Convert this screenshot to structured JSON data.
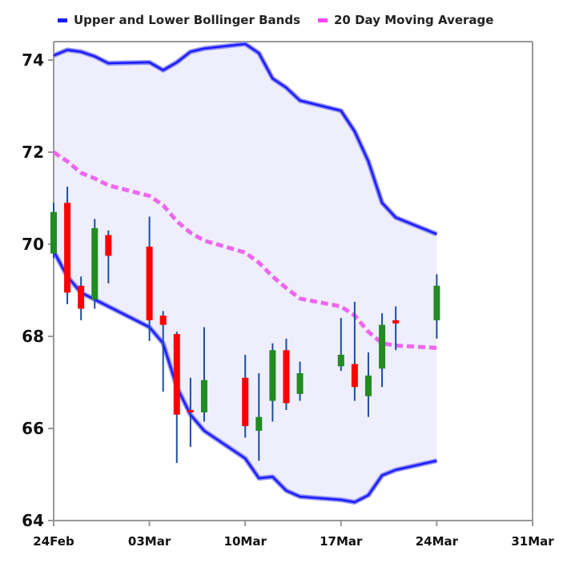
{
  "chart_data": {
    "type": "candlestick",
    "legend": [
      {
        "label": "Upper and Lower Bollinger Bands",
        "color": "#1a1aff"
      },
      {
        "label": "20 Day Moving Average",
        "color": "#ff44ff"
      }
    ],
    "xlim": [
      "2014-02-24",
      "2014-03-31"
    ],
    "ylim": [
      64,
      74.4
    ],
    "x_ticks": [
      {
        "date": "2014-02-24",
        "label": "24Feb"
      },
      {
        "date": "2014-03-03",
        "label": "03Mar"
      },
      {
        "date": "2014-03-10",
        "label": "10Mar"
      },
      {
        "date": "2014-03-17",
        "label": "17Mar"
      },
      {
        "date": "2014-03-24",
        "label": "24Mar"
      },
      {
        "date": "2014-03-31",
        "label": "31Mar"
      }
    ],
    "y_ticks": [
      64,
      66,
      68,
      70,
      72,
      74
    ],
    "colors": {
      "up": "#228b22",
      "down": "#ff0000",
      "wick": "#1a4fa0",
      "band": "#1a1aff",
      "band_fill": "#eeeefc",
      "ma": "#ee66ee",
      "axis": "#999999"
    },
    "candles": [
      {
        "date": "2014-02-24",
        "open": 69.8,
        "close": 70.7,
        "high": 70.9,
        "low": 69.7
      },
      {
        "date": "2014-02-25",
        "open": 70.9,
        "close": 68.95,
        "high": 71.25,
        "low": 68.7
      },
      {
        "date": "2014-02-26",
        "open": 69.1,
        "close": 68.6,
        "high": 69.3,
        "low": 68.35
      },
      {
        "date": "2014-02-27",
        "open": 68.8,
        "close": 70.35,
        "high": 70.55,
        "low": 68.6
      },
      {
        "date": "2014-02-28",
        "open": 70.2,
        "close": 69.75,
        "high": 70.3,
        "low": 69.15
      },
      {
        "date": "2014-03-03",
        "open": 69.95,
        "close": 68.35,
        "high": 70.6,
        "low": 67.9
      },
      {
        "date": "2014-03-04",
        "open": 68.45,
        "close": 68.25,
        "high": 68.55,
        "low": 66.8
      },
      {
        "date": "2014-03-05",
        "open": 68.05,
        "close": 66.3,
        "high": 68.1,
        "low": 65.25
      },
      {
        "date": "2014-03-06",
        "open": 66.4,
        "close": 66.35,
        "high": 67.1,
        "low": 65.6
      },
      {
        "date": "2014-03-07",
        "open": 66.35,
        "close": 67.05,
        "high": 68.2,
        "low": 66.15
      },
      {
        "date": "2014-03-10",
        "open": 67.1,
        "close": 66.05,
        "high": 67.6,
        "low": 65.8
      },
      {
        "date": "2014-03-11",
        "open": 65.95,
        "close": 66.25,
        "high": 67.2,
        "low": 65.3
      },
      {
        "date": "2014-03-12",
        "open": 66.6,
        "close": 67.7,
        "high": 67.85,
        "low": 66.15
      },
      {
        "date": "2014-03-13",
        "open": 67.7,
        "close": 66.55,
        "high": 67.95,
        "low": 66.4
      },
      {
        "date": "2014-03-14",
        "open": 66.75,
        "close": 67.2,
        "high": 67.45,
        "low": 66.6
      },
      {
        "date": "2014-03-17",
        "open": 67.35,
        "close": 67.6,
        "high": 68.4,
        "low": 67.25
      },
      {
        "date": "2014-03-18",
        "open": 67.4,
        "close": 66.9,
        "high": 68.75,
        "low": 66.6
      },
      {
        "date": "2014-03-19",
        "open": 66.7,
        "close": 67.15,
        "high": 67.65,
        "low": 66.25
      },
      {
        "date": "2014-03-20",
        "open": 67.3,
        "close": 68.25,
        "high": 68.5,
        "low": 66.9
      },
      {
        "date": "2014-03-21",
        "open": 68.35,
        "close": 68.28,
        "high": 68.65,
        "low": 67.7
      },
      {
        "date": "2014-03-24",
        "open": 68.35,
        "close": 69.1,
        "high": 69.35,
        "low": 67.95
      }
    ],
    "upper_band": [
      {
        "date": "2014-02-24",
        "value": 74.1
      },
      {
        "date": "2014-02-25",
        "value": 74.22
      },
      {
        "date": "2014-02-26",
        "value": 74.18
      },
      {
        "date": "2014-02-27",
        "value": 74.08
      },
      {
        "date": "2014-02-28",
        "value": 73.93
      },
      {
        "date": "2014-03-03",
        "value": 73.95
      },
      {
        "date": "2014-03-04",
        "value": 73.78
      },
      {
        "date": "2014-03-05",
        "value": 73.95
      },
      {
        "date": "2014-03-06",
        "value": 74.18
      },
      {
        "date": "2014-03-07",
        "value": 74.25
      },
      {
        "date": "2014-03-10",
        "value": 74.35
      },
      {
        "date": "2014-03-11",
        "value": 74.15
      },
      {
        "date": "2014-03-12",
        "value": 73.6
      },
      {
        "date": "2014-03-13",
        "value": 73.4
      },
      {
        "date": "2014-03-14",
        "value": 73.12
      },
      {
        "date": "2014-03-17",
        "value": 72.9
      },
      {
        "date": "2014-03-18",
        "value": 72.45
      },
      {
        "date": "2014-03-19",
        "value": 71.8
      },
      {
        "date": "2014-03-20",
        "value": 70.9
      },
      {
        "date": "2014-03-21",
        "value": 70.58
      },
      {
        "date": "2014-03-24",
        "value": 70.22
      }
    ],
    "lower_band": [
      {
        "date": "2014-02-24",
        "value": 69.85
      },
      {
        "date": "2014-02-25",
        "value": 69.3
      },
      {
        "date": "2014-02-26",
        "value": 68.95
      },
      {
        "date": "2014-02-27",
        "value": 68.8
      },
      {
        "date": "2014-02-28",
        "value": 68.65
      },
      {
        "date": "2014-03-03",
        "value": 68.2
      },
      {
        "date": "2014-03-04",
        "value": 67.85
      },
      {
        "date": "2014-03-05",
        "value": 66.9
      },
      {
        "date": "2014-03-06",
        "value": 66.3
      },
      {
        "date": "2014-03-07",
        "value": 65.95
      },
      {
        "date": "2014-03-10",
        "value": 65.35
      },
      {
        "date": "2014-03-11",
        "value": 64.92
      },
      {
        "date": "2014-03-12",
        "value": 64.95
      },
      {
        "date": "2014-03-13",
        "value": 64.65
      },
      {
        "date": "2014-03-14",
        "value": 64.52
      },
      {
        "date": "2014-03-17",
        "value": 64.45
      },
      {
        "date": "2014-03-18",
        "value": 64.4
      },
      {
        "date": "2014-03-19",
        "value": 64.55
      },
      {
        "date": "2014-03-20",
        "value": 64.98
      },
      {
        "date": "2014-03-21",
        "value": 65.1
      },
      {
        "date": "2014-03-24",
        "value": 65.3
      }
    ],
    "moving_average": [
      {
        "date": "2014-02-24",
        "value": 72.0
      },
      {
        "date": "2014-02-25",
        "value": 71.8
      },
      {
        "date": "2014-02-26",
        "value": 71.55
      },
      {
        "date": "2014-02-27",
        "value": 71.43
      },
      {
        "date": "2014-02-28",
        "value": 71.28
      },
      {
        "date": "2014-03-03",
        "value": 71.05
      },
      {
        "date": "2014-03-04",
        "value": 70.85
      },
      {
        "date": "2014-03-05",
        "value": 70.5
      },
      {
        "date": "2014-03-06",
        "value": 70.25
      },
      {
        "date": "2014-03-07",
        "value": 70.08
      },
      {
        "date": "2014-03-10",
        "value": 69.82
      },
      {
        "date": "2014-03-11",
        "value": 69.6
      },
      {
        "date": "2014-03-12",
        "value": 69.3
      },
      {
        "date": "2014-03-13",
        "value": 69.05
      },
      {
        "date": "2014-03-14",
        "value": 68.82
      },
      {
        "date": "2014-03-17",
        "value": 68.65
      },
      {
        "date": "2014-03-18",
        "value": 68.45
      },
      {
        "date": "2014-03-19",
        "value": 68.1
      },
      {
        "date": "2014-03-20",
        "value": 67.85
      },
      {
        "date": "2014-03-21",
        "value": 67.8
      },
      {
        "date": "2014-03-24",
        "value": 67.75
      }
    ]
  }
}
